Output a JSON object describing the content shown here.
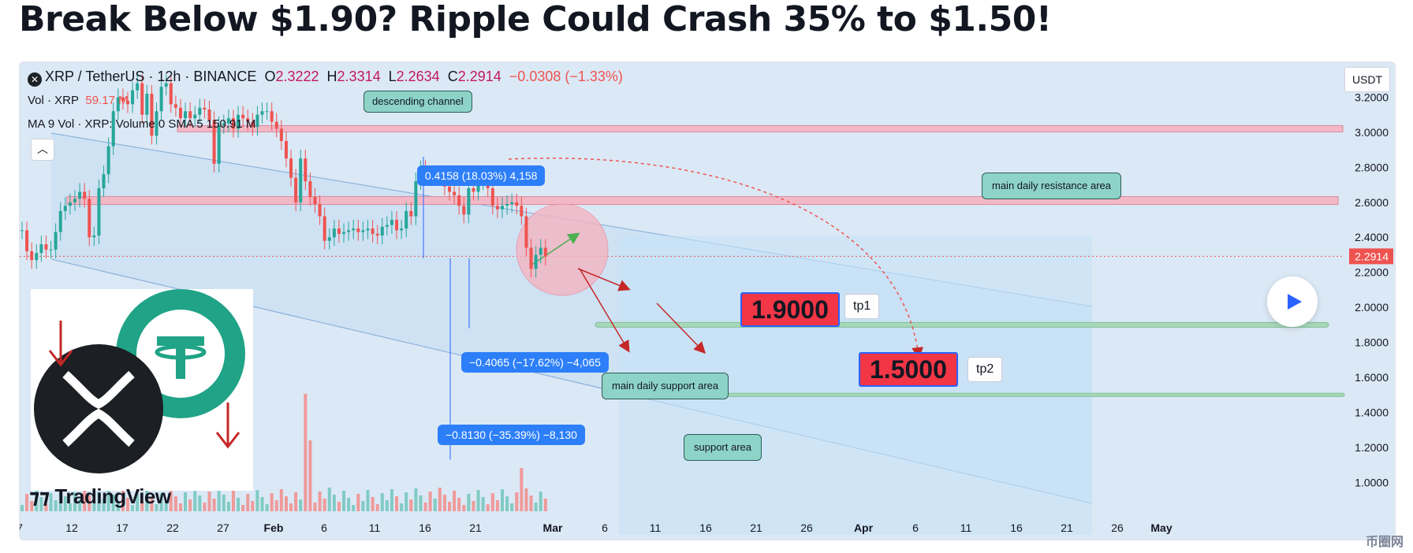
{
  "headline": "Break Below $1.90? Ripple Could Crash 35% to $1.50!",
  "legend": {
    "symbol": "XRP / TetherUS · 12h · BINANCE",
    "o_label": "O",
    "o_value": "2.3222",
    "h_label": "H",
    "h_value": "2.3314",
    "l_label": "L",
    "l_value": "2.2634",
    "c_label": "C",
    "c_value": "2.2914",
    "change": "−0.0308 (−1.33%)",
    "vol_label": "Vol · XRP",
    "vol_value": "59.17 M",
    "ma_label": "MA 9 Vol · XRP: Volume 0 SMA 5",
    "ma_value": "150.91 M"
  },
  "collapse_icon": "chevron-up-icon",
  "currency": "USDT",
  "current_price_label": "2.2914",
  "brand": "TradingView",
  "watermark": "币圈网",
  "annotations": {
    "descending_channel": "descending channel",
    "resistance": "main daily resistance area",
    "main_support": "main daily support area",
    "support": "support area",
    "measure_up": "0.4158 (18.03%) 4,158",
    "measure_down1": "−0.4065 (−17.62%) −4,065",
    "measure_down2": "−0.8130 (−35.39%) −8,130",
    "target1": "1.9000",
    "target2": "1.5000",
    "tp1": "tp1",
    "tp2": "tp2"
  },
  "colors": {
    "up": "#26a69a",
    "down": "#ef5350",
    "background": "#dbe8f5",
    "resistance_band": "#f2b8c6",
    "support_band": "#a8d8b9",
    "label_blue": "#2d7ff9",
    "label_green": "#8dd3c7"
  },
  "chart_data": {
    "type": "candlestick",
    "symbol": "XRP/USDT",
    "interval": "12h",
    "exchange": "BINANCE",
    "ylim": [
      0.88,
      3.4
    ],
    "y_ticks": [
      "3.2000",
      "3.0000",
      "2.8000",
      "2.6000",
      "2.4000",
      "2.2000",
      "2.0000",
      "1.8000",
      "1.6000",
      "1.4000",
      "1.2000",
      "1.0000"
    ],
    "x_ticks": [
      "7",
      "12",
      "17",
      "22",
      "27",
      "Feb",
      "6",
      "11",
      "16",
      "21",
      "Mar",
      "6",
      "11",
      "16",
      "21",
      "26",
      "Apr",
      "6",
      "11",
      "16",
      "21",
      "26",
      "May"
    ],
    "candles_close": [
      2.44,
      2.32,
      2.27,
      2.31,
      2.36,
      2.33,
      2.33,
      2.43,
      2.55,
      2.58,
      2.6,
      2.62,
      2.66,
      2.62,
      2.4,
      2.41,
      2.68,
      2.76,
      2.92,
      3.12,
      3.2,
      3.18,
      3.16,
      3.24,
      3.28,
      3.1,
      3.22,
      2.98,
      3.12,
      3.26,
      3.28,
      3.16,
      3.14,
      3.08,
      3.12,
      3.08,
      3.1,
      3.14,
      3.13,
      3.07,
      2.82,
      3.04,
      3.05,
      3.08,
      3.02,
      3.1,
      3.08,
      3.06,
      3.03,
      3.1,
      3.12,
      3.12,
      3.06,
      3.02,
      2.95,
      2.85,
      2.74,
      2.6,
      2.85,
      2.72,
      2.63,
      2.59,
      2.52,
      2.38,
      2.4,
      2.45,
      2.42,
      2.43,
      2.44,
      2.45,
      2.43,
      2.44,
      2.45,
      2.42,
      2.41,
      2.46,
      2.47,
      2.5,
      2.44,
      2.45,
      2.55,
      2.52,
      2.72,
      2.79,
      2.76,
      2.75,
      2.76,
      2.75,
      2.69,
      2.66,
      2.64,
      2.58,
      2.53,
      2.68,
      2.66,
      2.72,
      2.75,
      2.68,
      2.58,
      2.56,
      2.58,
      2.59,
      2.6,
      2.58,
      2.52,
      2.34,
      2.22,
      2.3,
      2.34,
      2.29
    ],
    "horizontal_levels": {
      "resistance_upper": 3.02,
      "resistance_lower": 2.61,
      "main_daily_support": 1.9,
      "support": 1.5,
      "current_price": 2.2914
    },
    "measurements": [
      {
        "label": "0.4158 (18.03%) 4,158",
        "change": 0.4158,
        "percent": 18.03
      },
      {
        "label": "−0.4065 (−17.62%) −4,065",
        "change": -0.4065,
        "percent": -17.62
      },
      {
        "label": "−0.8130 (−35.39%) −8,130",
        "change": -0.813,
        "percent": -35.39
      }
    ],
    "targets": [
      {
        "name": "tp1",
        "price": 1.9
      },
      {
        "name": "tp2",
        "price": 1.5
      }
    ],
    "volume_labels": {
      "volume": "59.17 M",
      "ma": "150.91 M"
    }
  }
}
